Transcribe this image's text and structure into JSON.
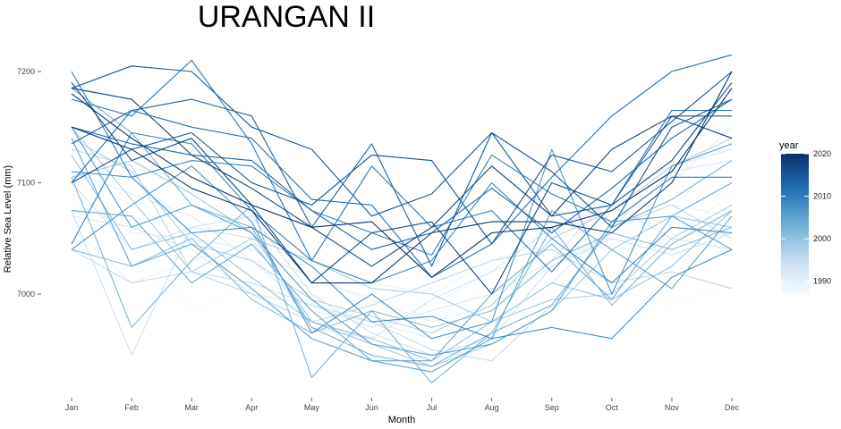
{
  "chart_data": {
    "type": "line",
    "title": "URANGAN II",
    "xlabel": "Month",
    "ylabel": "Relative Sea Level (mm)",
    "categories": [
      "Jan",
      "Feb",
      "Mar",
      "Apr",
      "May",
      "Jun",
      "Jul",
      "Aug",
      "Sep",
      "Oct",
      "Nov",
      "Dec"
    ],
    "ylim": [
      6915,
      7220
    ],
    "yticks": [
      7000,
      7100,
      7200
    ],
    "grid": false,
    "legend": {
      "title": "year",
      "type": "colorbar",
      "position": "right",
      "range": [
        1987,
        2020
      ],
      "ticks": [
        1990,
        2000,
        2010,
        2020
      ],
      "colors": [
        "#f7fbff",
        "#c6dbef",
        "#6baed6",
        "#2171b5",
        "#08306b"
      ]
    },
    "series": [
      {
        "year": 1987,
        "values": [
          7080,
          7060,
          6985,
          7010,
          7000,
          6985,
          6980,
          7005,
          7015,
          7005,
          6990,
          7010
        ]
      },
      {
        "year": 1988,
        "values": [
          7110,
          7080,
          7050,
          7030,
          7020,
          6990,
          6990,
          7020,
          7040,
          7040,
          7050,
          7090
        ]
      },
      {
        "year": 1989,
        "values": [
          7060,
          7010,
          7030,
          7045,
          7030,
          7010,
          7000,
          7030,
          7050,
          7060,
          7080,
          7070
        ]
      },
      {
        "year": 1990,
        "values": [
          7090,
          7055,
          7050,
          7040,
          7015,
          6995,
          6975,
          6990,
          7025,
          7055,
          7100,
          7150
        ]
      },
      {
        "year": 1991,
        "values": [
          7110,
          7090,
          7070,
          7030,
          6985,
          6975,
          6960,
          6975,
          7010,
          7060,
          7110,
          7120
        ]
      },
      {
        "year": 1992,
        "values": [
          7070,
          7060,
          7040,
          7000,
          6990,
          6970,
          6985,
          7000,
          7030,
          7090,
          7115,
          7130
        ]
      },
      {
        "year": 1993,
        "values": [
          7100,
          7040,
          7060,
          7050,
          6970,
          6960,
          6995,
          7020,
          7060,
          7080,
          7050,
          7040
        ]
      },
      {
        "year": 1994,
        "values": [
          7075,
          6945,
          7060,
          7070,
          7000,
          6965,
          6945,
          6960,
          7025,
          7050,
          7035,
          7055
        ]
      },
      {
        "year": 1995,
        "values": [
          7040,
          7010,
          7020,
          7010,
          6990,
          6975,
          6950,
          6940,
          6990,
          7060,
          7080,
          7050
        ]
      },
      {
        "year": 1996,
        "values": [
          7130,
          7115,
          7020,
          7000,
          6975,
          6990,
          7010,
          7030,
          7040,
          7010,
          7020,
          7005
        ]
      },
      {
        "year": 1997,
        "values": [
          7140,
          7110,
          7045,
          7030,
          6995,
          6980,
          6965,
          6990,
          7050,
          7075,
          7115,
          7140
        ]
      },
      {
        "year": 1998,
        "values": [
          7150,
          7085,
          7020,
          7050,
          7030,
          7005,
          7000,
          6975,
          6995,
          7000,
          7050,
          7080
        ]
      },
      {
        "year": 1999,
        "values": [
          7105,
          7120,
          7090,
          7055,
          6975,
          6955,
          6935,
          6955,
          6985,
          7040,
          7070,
          7060
        ]
      },
      {
        "year": 2000,
        "values": [
          7125,
          7040,
          7055,
          7015,
          6975,
          6960,
          6940,
          6975,
          7010,
          6995,
          7025,
          7075
        ]
      },
      {
        "year": 2001,
        "values": [
          7040,
          7025,
          7050,
          6995,
          6965,
          6985,
          6970,
          6985,
          7030,
          7055,
          7040,
          7060
        ]
      },
      {
        "year": 2002,
        "values": [
          7105,
          6970,
          7030,
          7080,
          6925,
          6985,
          6920,
          6965,
          7060,
          6990,
          7045,
          7075
        ]
      },
      {
        "year": 2003,
        "values": [
          7185,
          7145,
          7080,
          7060,
          6970,
          6945,
          6935,
          6965,
          6990,
          7060,
          7085,
          7120
        ]
      },
      {
        "year": 2004,
        "values": [
          7075,
          7070,
          7010,
          7045,
          6985,
          6940,
          6940,
          7000,
          7045,
          6995,
          7070,
          7100
        ]
      },
      {
        "year": 2005,
        "values": [
          7140,
          7025,
          7045,
          7005,
          6960,
          6940,
          6930,
          6960,
          7075,
          7040,
          7005,
          7070
        ]
      },
      {
        "year": 2006,
        "values": [
          7150,
          7060,
          7080,
          7055,
          6995,
          6955,
          6945,
          6955,
          6985,
          7065,
          7070,
          7040
        ]
      },
      {
        "year": 2007,
        "values": [
          7040,
          7080,
          7115,
          7065,
          6965,
          7000,
          6960,
          6975,
          7130,
          7000,
          7115,
          7135
        ]
      },
      {
        "year": 2008,
        "values": [
          7110,
          7105,
          7055,
          7060,
          7025,
          6975,
          6980,
          6960,
          6970,
          6960,
          7015,
          7040
        ]
      },
      {
        "year": 2009,
        "values": [
          7045,
          7145,
          7135,
          7075,
          7030,
          7010,
          7030,
          7100,
          7050,
          7010,
          7060,
          7055
        ]
      },
      {
        "year": 2010,
        "values": [
          7200,
          7105,
          7120,
          7115,
          7075,
          7055,
          7035,
          7125,
          7090,
          7065,
          7105,
          7105
        ]
      },
      {
        "year": 2011,
        "values": [
          7175,
          7160,
          7210,
          7135,
          7030,
          7115,
          7060,
          7075,
          7020,
          7080,
          7165,
          7165
        ]
      },
      {
        "year": 2012,
        "values": [
          7100,
          7165,
          7150,
          7140,
          7085,
          7080,
          7015,
          7045,
          7105,
          7160,
          7200,
          7215
        ]
      },
      {
        "year": 2013,
        "values": [
          7150,
          7135,
          7125,
          7120,
          7075,
          7040,
          7055,
          7095,
          7055,
          7095,
          7140,
          7175
        ]
      },
      {
        "year": 2014,
        "values": [
          7135,
          7165,
          7175,
          7160,
          7060,
          7135,
          7025,
          7145,
          7070,
          7080,
          7160,
          7160
        ]
      },
      {
        "year": 2015,
        "values": [
          7185,
          7205,
          7200,
          7150,
          7130,
          7070,
          7090,
          7145,
          7110,
          7060,
          7150,
          7175
        ]
      },
      {
        "year": 2016,
        "values": [
          7100,
          7130,
          7145,
          7100,
          7080,
          7125,
          7120,
          7045,
          7125,
          7110,
          7155,
          7200
        ]
      },
      {
        "year": 2017,
        "values": [
          7190,
          7120,
          7140,
          7080,
          7010,
          7055,
          7065,
          7000,
          7100,
          7080,
          7120,
          7190
        ]
      },
      {
        "year": 2018,
        "values": [
          7185,
          7175,
          7125,
          7095,
          7060,
          7025,
          7060,
          7115,
          7070,
          7130,
          7160,
          7140
        ]
      },
      {
        "year": 2019,
        "values": [
          7150,
          7130,
          7095,
          7075,
          7010,
          7010,
          7055,
          7065,
          7065,
          7055,
          7100,
          7200
        ]
      },
      {
        "year": 2020,
        "values": [
          7180,
          7140,
          7105,
          7080,
          7060,
          7065,
          7015,
          7055,
          7060,
          7075,
          7110,
          7185
        ]
      }
    ]
  }
}
